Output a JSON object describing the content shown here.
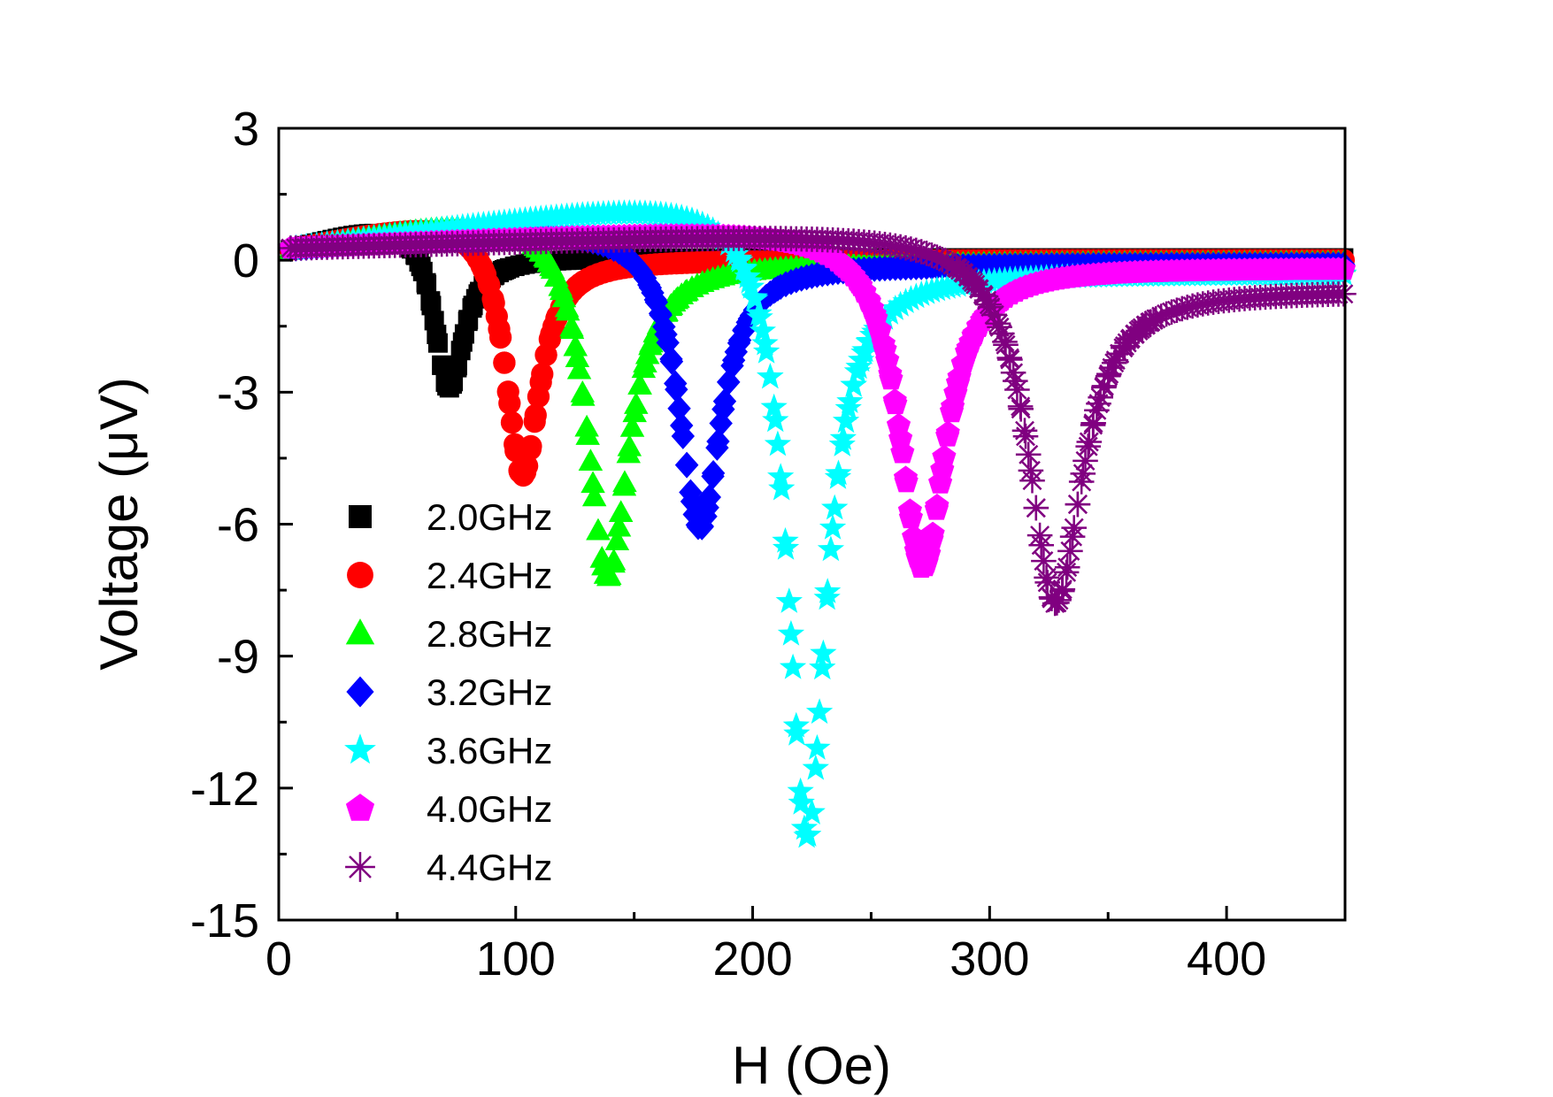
{
  "chart_data": {
    "type": "scatter",
    "title": "",
    "xlabel": "H (Oe)",
    "ylabel": "Voltage (μV)",
    "xlim": [
      0,
      450
    ],
    "ylim": [
      -15,
      3
    ],
    "xticks": [
      0,
      100,
      200,
      300,
      400
    ],
    "yticks": [
      3,
      0,
      -3,
      -6,
      -9,
      -12,
      -15
    ],
    "x_minor_step": 50,
    "y_minor_step": 1.5,
    "grid": false,
    "legend_position": "lower-left",
    "series": [
      {
        "name": "2.0GHz",
        "marker": "square",
        "color": "#000000",
        "x_start": 5,
        "x_end": 450,
        "resonance": 72,
        "min_value": -2.9,
        "width": 8,
        "peak_value": 1.2,
        "tail_value": 0.05,
        "dispersive": -0.25
      },
      {
        "name": "2.4GHz",
        "marker": "circle",
        "color": "#ff0000",
        "x_start": 5,
        "x_end": 450,
        "resonance": 103,
        "min_value": -4.9,
        "width": 9,
        "peak_value": 1.3,
        "tail_value": 0.0,
        "dispersive": -0.3
      },
      {
        "name": "2.8GHz",
        "marker": "triangle-up",
        "color": "#00ff00",
        "x_start": 5,
        "x_end": 450,
        "resonance": 139,
        "min_value": -7.2,
        "width": 11,
        "peak_value": 1.5,
        "tail_value": -0.05,
        "dispersive": -0.3
      },
      {
        "name": "3.2GHz",
        "marker": "diamond",
        "color": "#0000ff",
        "x_start": 5,
        "x_end": 450,
        "resonance": 178,
        "min_value": -6.1,
        "width": 11,
        "peak_value": 1.0,
        "tail_value": -0.1,
        "dispersive": -0.4
      },
      {
        "name": "3.6GHz",
        "marker": "star",
        "color": "#00ffff",
        "x_start": 5,
        "x_end": 450,
        "resonance": 223,
        "min_value": -13.1,
        "width": 10,
        "peak_value": 1.8,
        "tail_value": -0.3,
        "dispersive": -0.4
      },
      {
        "name": "4.0GHz",
        "marker": "pentagon",
        "color": "#ff00ff",
        "x_start": 5,
        "x_end": 450,
        "resonance": 272,
        "min_value": -7.0,
        "width": 12,
        "peak_value": 0.9,
        "tail_value": -0.2,
        "dispersive": -0.5
      },
      {
        "name": "4.4GHz",
        "marker": "asterisk",
        "color": "#800080",
        "x_start": 5,
        "x_end": 450,
        "resonance": 328,
        "min_value": -7.8,
        "width": 14,
        "peak_value": 0.8,
        "tail_value": -0.7,
        "dispersive": -0.4
      }
    ]
  }
}
